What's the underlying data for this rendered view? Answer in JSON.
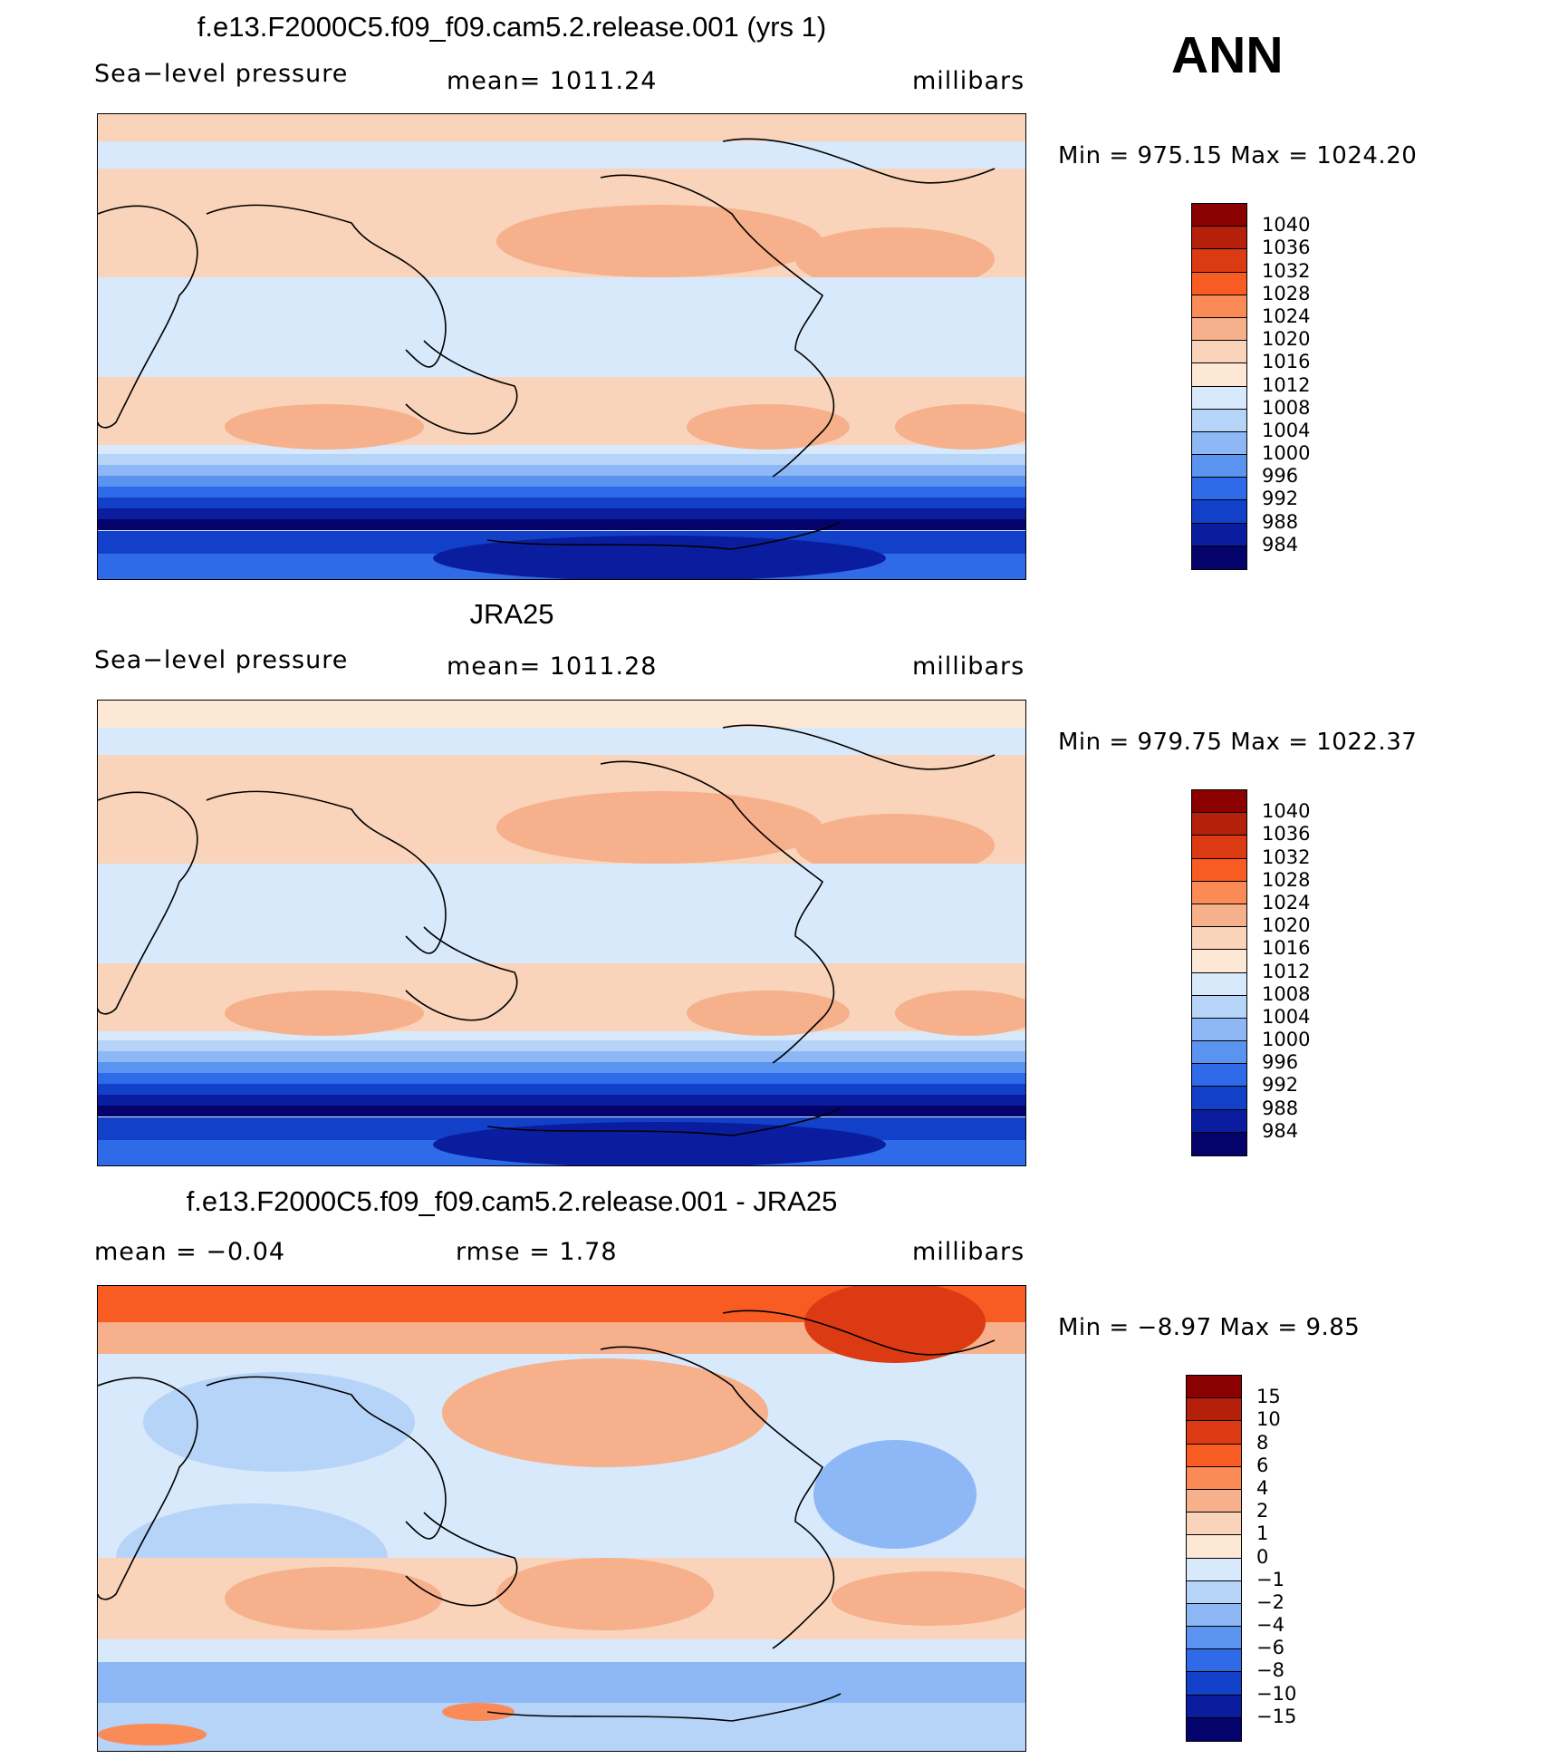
{
  "season": "ANN",
  "panels": [
    {
      "title": "f.e13.F2000C5.f09_f09.cam5.2.release.001 (yrs 1)",
      "left_label": "Sea−level pressure",
      "center_label": "mean=  1011.24",
      "units": "millibars",
      "minmax": "Min  =  975.15  Max  =  1024.20",
      "colorbar": {
        "labels": [
          "1040",
          "1036",
          "1032",
          "1028",
          "1024",
          "1020",
          "1016",
          "1012",
          "1008",
          "1004",
          "1000",
          "996",
          "992",
          "988",
          "984"
        ],
        "colors": [
          "#8b0000",
          "#b5200b",
          "#dc3a12",
          "#f85c22",
          "#fa8a56",
          "#f6b08b",
          "#f9d3ba",
          "#fde8d6",
          "#d8e9fb",
          "#b6d3f8",
          "#8db8f5",
          "#5a94f0",
          "#2f6be8",
          "#1240c8",
          "#0a1d9e",
          "#04036c"
        ]
      },
      "map_scheme": "model"
    },
    {
      "title": "JRA25",
      "left_label": "Sea−level pressure",
      "center_label": "mean=  1011.28",
      "units": "millibars",
      "minmax": "Min  =  979.75  Max  =  1022.37",
      "colorbar": {
        "labels": [
          "1040",
          "1036",
          "1032",
          "1028",
          "1024",
          "1020",
          "1016",
          "1012",
          "1008",
          "1004",
          "1000",
          "996",
          "992",
          "988",
          "984"
        ],
        "colors": [
          "#8b0000",
          "#b5200b",
          "#dc3a12",
          "#f85c22",
          "#fa8a56",
          "#f6b08b",
          "#f9d3ba",
          "#fde8d6",
          "#d8e9fb",
          "#b6d3f8",
          "#8db8f5",
          "#5a94f0",
          "#2f6be8",
          "#1240c8",
          "#0a1d9e",
          "#04036c"
        ]
      },
      "map_scheme": "obs"
    },
    {
      "title": "f.e13.F2000C5.f09_f09.cam5.2.release.001 - JRA25",
      "left_label": "mean  =    −0.04",
      "center_label": "rmse  =     1.78",
      "units": "millibars",
      "minmax": "Min  =    −8.97  Max  =     9.85",
      "colorbar": {
        "labels": [
          "15",
          "10",
          "8",
          "6",
          "4",
          "2",
          "1",
          "0",
          "−1",
          "−2",
          "−4",
          "−6",
          "−8",
          "−10",
          "−15"
        ],
        "colors": [
          "#8b0000",
          "#b5200b",
          "#dc3a12",
          "#f85c22",
          "#fa8a56",
          "#f6b08b",
          "#f9d3ba",
          "#fde8d6",
          "#d8e9fb",
          "#b6d3f8",
          "#8db8f5",
          "#5a94f0",
          "#2f6be8",
          "#1240c8",
          "#0a1d9e",
          "#04036c"
        ]
      },
      "map_scheme": "diff"
    }
  ]
}
